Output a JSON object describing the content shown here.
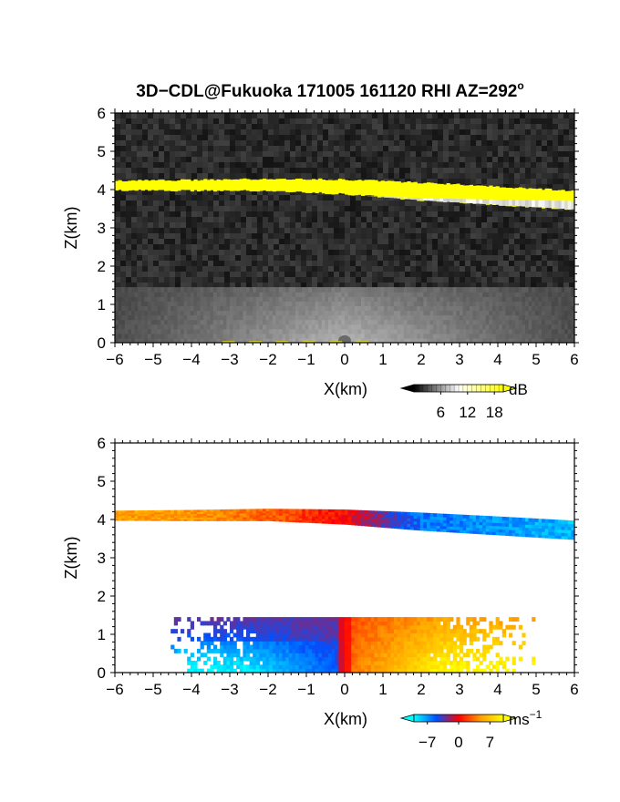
{
  "figure": {
    "title": "3D−CDL@Fukuoka 171005 161120 RHI AZ=292",
    "title_superscript": "o"
  },
  "chart_data": [
    {
      "type": "heatmap",
      "name": "intensity",
      "xlabel": "X(km)",
      "ylabel": "Z(km)",
      "xlim": [
        -6,
        6
      ],
      "ylim": [
        0,
        6
      ],
      "x_ticks": [
        -6,
        -5,
        -4,
        -3,
        -2,
        -1,
        0,
        1,
        2,
        3,
        4,
        5,
        6
      ],
      "y_ticks": [
        0,
        1,
        2,
        3,
        4,
        5,
        6
      ],
      "x_tick_labels": [
        "−6",
        "−5",
        "−4",
        "−3",
        "−2",
        "−1",
        "0",
        "1",
        "2",
        "3",
        "4",
        "5",
        "6"
      ],
      "y_tick_labels": [
        "0",
        "1",
        "2",
        "3",
        "4",
        "5",
        "6"
      ],
      "background": "noise",
      "colorbar": {
        "unit": "dB",
        "ticks": [
          6,
          12,
          18
        ],
        "tick_labels": [
          "6",
          "12",
          "18"
        ],
        "range": [
          0,
          20
        ],
        "colors": [
          "#000000",
          "#ffffff",
          "#ffff00"
        ]
      },
      "features": [
        {
          "feature": "cloud_layer",
          "x": [
            -6,
            -4,
            -2,
            0,
            2,
            4,
            6
          ],
          "z_top": [
            4.23,
            4.25,
            4.28,
            4.26,
            4.18,
            4.08,
            3.97
          ],
          "z_bottom": [
            3.98,
            3.97,
            3.97,
            3.88,
            3.72,
            3.6,
            3.48
          ],
          "value_db": 20
        },
        {
          "feature": "boundary_layer_backscatter",
          "x_range": [
            -6,
            6
          ],
          "z_range": [
            0,
            1.45
          ],
          "value_db": 8
        }
      ]
    },
    {
      "type": "heatmap",
      "name": "doppler_velocity",
      "xlabel": "X(km)",
      "ylabel": "Z(km)",
      "xlim": [
        -6,
        6
      ],
      "ylim": [
        0,
        6
      ],
      "x_ticks": [
        -6,
        -5,
        -4,
        -3,
        -2,
        -1,
        0,
        1,
        2,
        3,
        4,
        5,
        6
      ],
      "y_ticks": [
        0,
        1,
        2,
        3,
        4,
        5,
        6
      ],
      "x_tick_labels": [
        "−6",
        "−5",
        "−4",
        "−3",
        "−2",
        "−1",
        "0",
        "1",
        "2",
        "3",
        "4",
        "5",
        "6"
      ],
      "y_tick_labels": [
        "0",
        "1",
        "2",
        "3",
        "4",
        "5",
        "6"
      ],
      "background": "white",
      "colorbar": {
        "unit": "ms",
        "unit_superscript": "−1",
        "ticks": [
          -7,
          0,
          7
        ],
        "tick_labels": [
          "−7",
          "0",
          "7"
        ],
        "range": [
          -10,
          10
        ],
        "colors": [
          "#00ffff",
          "#0050ff",
          "#ff0000",
          "#ffa000",
          "#ffff00"
        ]
      },
      "features": [
        {
          "feature": "cloud_layer",
          "x": [
            -6,
            -4,
            -2,
            0,
            2,
            4,
            6
          ],
          "z_top": [
            4.23,
            4.25,
            4.28,
            4.26,
            4.18,
            4.08,
            3.97
          ],
          "z_bottom": [
            3.98,
            3.97,
            3.97,
            3.88,
            3.72,
            3.6,
            3.48
          ],
          "velocity_ms": [
            5,
            5,
            3,
            0,
            -6,
            -7,
            -8
          ]
        },
        {
          "feature": "boundary_layer_flow",
          "x_range": [
            -4.5,
            5
          ],
          "z_range": [
            0,
            1.45
          ],
          "velocity_ms_left": -8,
          "velocity_ms_right": 8
        }
      ]
    }
  ]
}
